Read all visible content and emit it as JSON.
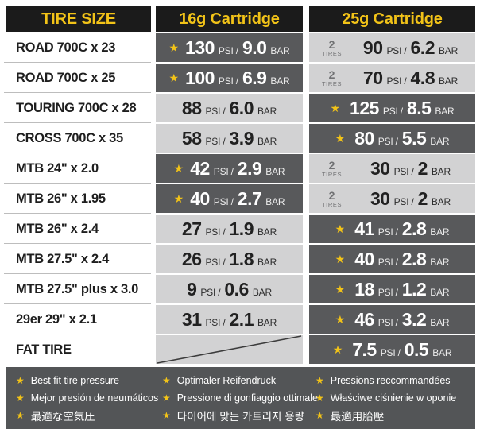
{
  "colors": {
    "accent_yellow": "#f2c318",
    "header_black": "#1b1b1b",
    "best_fit_cell_gray": "#58595b",
    "normal_cell_gray": "#d2d2d3",
    "footer_gray": "#535557"
  },
  "header": {
    "tire_size_label": "TIRE SIZE",
    "cartridge_16_label": "16g Cartridge",
    "cartridge_25_label": "25g Cartridge"
  },
  "units": {
    "psi": "PSI",
    "slash": "/",
    "bar": "BAR"
  },
  "star_glyph": "★",
  "tires_badge": {
    "count": "2",
    "label": "TIRES"
  },
  "rows": [
    {
      "tire": "ROAD 700C x 23",
      "c16": {
        "psi": "130",
        "bar": "9.0",
        "best": true
      },
      "c25": {
        "psi": "90",
        "bar": "6.2",
        "two_tires": true
      }
    },
    {
      "tire": "ROAD 700C x 25",
      "c16": {
        "psi": "100",
        "bar": "6.9",
        "best": true
      },
      "c25": {
        "psi": "70",
        "bar": "4.8",
        "two_tires": true
      }
    },
    {
      "tire": "TOURING 700C x 28",
      "c16": {
        "psi": "88",
        "bar": "6.0"
      },
      "c25": {
        "psi": "125",
        "bar": "8.5",
        "best": true
      }
    },
    {
      "tire": "CROSS 700C x 35",
      "c16": {
        "psi": "58",
        "bar": "3.9"
      },
      "c25": {
        "psi": "80",
        "bar": "5.5",
        "best": true
      }
    },
    {
      "tire": "MTB 24\" x 2.0",
      "c16": {
        "psi": "42",
        "bar": "2.9",
        "best": true
      },
      "c25": {
        "psi": "30",
        "bar": "2",
        "two_tires": true
      }
    },
    {
      "tire": "MTB 26\" x 1.95",
      "c16": {
        "psi": "40",
        "bar": "2.7",
        "best": true
      },
      "c25": {
        "psi": "30",
        "bar": "2",
        "two_tires": true
      }
    },
    {
      "tire": "MTB 26\" x 2.4",
      "c16": {
        "psi": "27",
        "bar": "1.9"
      },
      "c25": {
        "psi": "41",
        "bar": "2.8",
        "best": true
      }
    },
    {
      "tire": "MTB 27.5\" x 2.4",
      "c16": {
        "psi": "26",
        "bar": "1.8"
      },
      "c25": {
        "psi": "40",
        "bar": "2.8",
        "best": true
      }
    },
    {
      "tire": "MTB 27.5\" plus x 3.0",
      "c16": {
        "psi": "9",
        "bar": "0.6"
      },
      "c25": {
        "psi": "18",
        "bar": "1.2",
        "best": true
      }
    },
    {
      "tire": "29er 29\" x 2.1",
      "c16": {
        "psi": "31",
        "bar": "2.1"
      },
      "c25": {
        "psi": "46",
        "bar": "3.2",
        "best": true
      }
    },
    {
      "tire": "FAT TIRE",
      "c16": {
        "empty": true
      },
      "c25": {
        "psi": "7.5",
        "bar": "0.5",
        "best": true
      }
    }
  ],
  "legend": {
    "columns": [
      [
        "Best fit tire pressure",
        "Mejor presión de neumáticos",
        "最適な空気圧"
      ],
      [
        "Optimaler Reifendruck",
        "Pressione di gonfiaggio ottimale",
        "타이어에 맞는 카트리지 용량"
      ],
      [
        "Pressions reccommandées",
        "Właściwe ciśnienie w oponie",
        "最適用胎壓"
      ]
    ]
  },
  "chart_data": {
    "type": "table",
    "columns": [
      "TIRE SIZE",
      "16g Cartridge",
      "25g Cartridge"
    ],
    "rows": [
      [
        "ROAD 700C x 23",
        "★ 130 PSI / 9.0 BAR",
        "2 TIRES · 90 PSI / 6.2 BAR"
      ],
      [
        "ROAD 700C x 25",
        "★ 100 PSI / 6.9 BAR",
        "2 TIRES · 70 PSI / 4.8 BAR"
      ],
      [
        "TOURING 700C x 28",
        "88 PSI / 6.0 BAR",
        "★ 125 PSI / 8.5 BAR"
      ],
      [
        "CROSS 700C x 35",
        "58 PSI / 3.9 BAR",
        "★ 80 PSI / 5.5 BAR"
      ],
      [
        "MTB 24\" x 2.0",
        "★ 42 PSI / 2.9 BAR",
        "2 TIRES · 30 PSI / 2 BAR"
      ],
      [
        "MTB 26\" x 1.95",
        "★ 40 PSI / 2.7 BAR",
        "2 TIRES · 30 PSI / 2 BAR"
      ],
      [
        "MTB 26\" x 2.4",
        "27 PSI / 1.9 BAR",
        "★ 41 PSI / 2.8 BAR"
      ],
      [
        "MTB 27.5\" x 2.4",
        "26 PSI / 1.8 BAR",
        "★ 40 PSI / 2.8 BAR"
      ],
      [
        "MTB 27.5\" plus x 3.0",
        "9 PSI / 0.6 BAR",
        "★ 18 PSI / 1.2 BAR"
      ],
      [
        "29er 29\" x 2.1",
        "31 PSI / 2.1 BAR",
        "★ 46 PSI / 3.2 BAR"
      ],
      [
        "FAT TIRE",
        "",
        "★ 7.5 PSI / 0.5 BAR"
      ]
    ],
    "notes": "★ marks best fit tire pressure (legend shown in 9 languages); '2 TIRES' marks sizes where one 25g cartridge fills two tires; FAT TIRE has no 16g value (cell struck with diagonal line)."
  }
}
